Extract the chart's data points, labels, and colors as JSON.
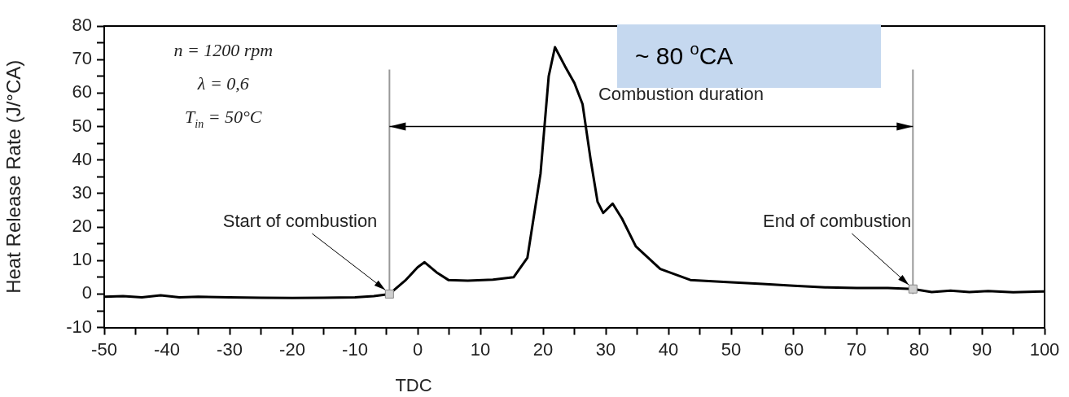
{
  "chart_data": {
    "type": "line",
    "xlabel": "TDC",
    "ylabel": "Heat Release Rate (J/°CA)",
    "xlim": [
      -50,
      100
    ],
    "ylim": [
      -10,
      80
    ],
    "xticks": [
      -50,
      {
        "value": -45,
        "label": null
      },
      -40,
      {
        "value": -35,
        "label": null
      },
      -30,
      {
        "value": -25,
        "label": null
      },
      -20,
      {
        "value": -15,
        "label": null
      },
      -10,
      {
        "value": -5,
        "label": null
      },
      0,
      {
        "value": 5,
        "label": null
      },
      10,
      {
        "value": 15,
        "label": null
      },
      20,
      {
        "value": 25,
        "label": null
      },
      30,
      {
        "value": 35,
        "label": null
      },
      40,
      {
        "value": 45,
        "label": null
      },
      50,
      {
        "value": 55,
        "label": null
      },
      60,
      {
        "value": 65,
        "label": null
      },
      70,
      {
        "value": 75,
        "label": null
      },
      80,
      {
        "value": 85,
        "label": null
      },
      90,
      {
        "value": 95,
        "label": null
      },
      100
    ],
    "yticks": [
      -10,
      {
        "value": -5,
        "label": null
      },
      0,
      {
        "value": 5,
        "label": null
      },
      10,
      {
        "value": 15,
        "label": null
      },
      20,
      {
        "value": 25,
        "label": null
      },
      30,
      {
        "value": 35,
        "label": null
      },
      40,
      {
        "value": 45,
        "label": null
      },
      50,
      {
        "value": 55,
        "label": null
      },
      60,
      {
        "value": 65,
        "label": null
      },
      70,
      {
        "value": 75,
        "label": null
      },
      80
    ],
    "grid": false,
    "legend": false,
    "series": [
      {
        "color": "#000000",
        "x": [
          -50,
          -47,
          -44,
          -41,
          -38,
          -35,
          -30,
          -25,
          -20,
          -15,
          -10,
          -7,
          -4.5,
          -2,
          0,
          1.1,
          3,
          4.9,
          8,
          12,
          15.3,
          17.5,
          19.6,
          20.9,
          21.9,
          23.5,
          25,
          26.3,
          27.6,
          28.7,
          29.6,
          31.1,
          32.6,
          34.8,
          38.7,
          43.5,
          50,
          55,
          60,
          65,
          70,
          75,
          79,
          82,
          85,
          88,
          91,
          95,
          100
        ],
        "values": [
          -0.8,
          -0.6,
          -1,
          -0.4,
          -1,
          -0.8,
          -1,
          -1.1,
          -1.2,
          -1.1,
          -1,
          -0.6,
          0,
          4,
          8,
          9.5,
          6.5,
          4.2,
          4,
          4.3,
          5,
          10.8,
          36,
          65,
          73.7,
          68,
          63,
          56.7,
          40,
          27.5,
          24.2,
          27,
          22.5,
          14.2,
          7.5,
          4.2,
          3.5,
          3,
          2.5,
          2,
          1.8,
          1.8,
          1.5,
          0.6,
          1,
          0.6,
          0.9,
          0.5,
          0.8
        ]
      }
    ],
    "ref_lines": [
      {
        "axis": "x",
        "value": -4.5,
        "color": "#999999"
      },
      {
        "axis": "x",
        "value": 79,
        "color": "#999999"
      }
    ],
    "annotations": [
      "n = 1200 rpm",
      "λ = 0,6",
      "T$_{in}$ = 50°C",
      "Combustion duration",
      "~ 80 $^{o}$CA",
      {
        "text": "Start of combustion",
        "x": -4.5,
        "y": 0
      },
      {
        "text": "End of combustion",
        "x": 79,
        "y": 1.5
      }
    ]
  }
}
